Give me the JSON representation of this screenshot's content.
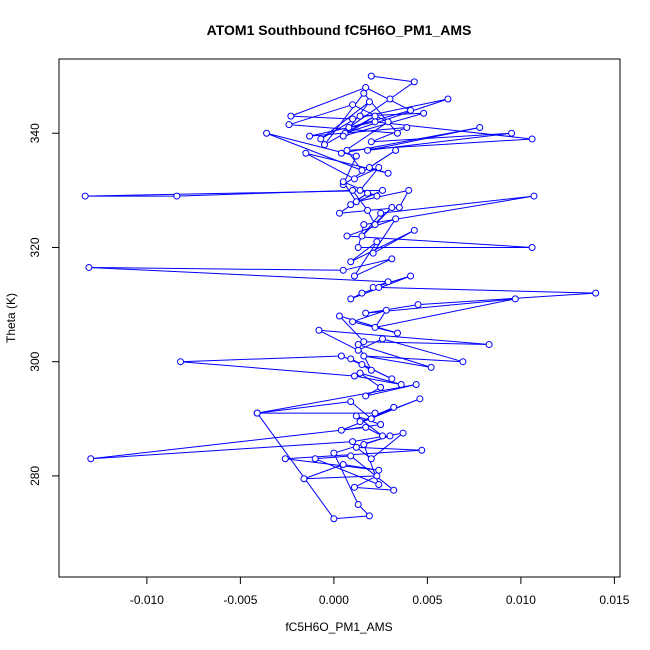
{
  "chart_data": {
    "type": "line",
    "title": "ATOM1 Southbound fC5H6O_PM1_AMS",
    "xlabel": "fC5H6O_PM1_AMS",
    "ylabel": "Theta (K)",
    "xlim": [
      -0.0147,
      0.0153
    ],
    "ylim": [
      262.3,
      353.0
    ],
    "x_ticks": [
      -0.01,
      -0.005,
      0.0,
      0.005,
      0.01,
      0.015
    ],
    "x_tick_labels": [
      "-0.010",
      "-0.005",
      "0.000",
      "0.005",
      "0.010",
      "0.015"
    ],
    "y_ticks": [
      280,
      300,
      320,
      340
    ],
    "y_tick_labels": [
      "280",
      "300",
      "320",
      "340"
    ],
    "series_color": "#0000ff",
    "marker": "open-circle",
    "grid": false,
    "legend": "none",
    "series": [
      {
        "x": [
          0.002,
          0.0043,
          0.003,
          0.0008,
          0.0041,
          0.0017,
          -0.0023,
          0.001,
          0.0061,
          0.0006,
          0.0019,
          -0.0007,
          0.0014,
          0.0048,
          0.0005,
          0.0022,
          -0.0005,
          0.0016,
          0.0034,
          -0.0024,
          0.001,
          0.0029,
          0.0004,
          0.0078,
          0.0018,
          0.0095,
          0.002,
          0.0039,
          -0.0013,
          0.0022,
          0.0106,
          0.0007,
          0.0015,
          -0.0036,
          0.0012,
          0.0005,
          0.0033,
          0.0019,
          0.0029,
          -0.0015,
          0.0011,
          0.0024,
          0.0014,
          0.0023,
          0.0005,
          0.0012,
          0.004,
          0.0035,
          0.0003,
          0.0018,
          0.0009,
          0.0026,
          -0.0133,
          -0.0084,
          0.001,
          0.0018,
          0.0022,
          0.0031,
          0.0015,
          0.0025,
          0.0107,
          0.0016,
          0.0013,
          0.0106,
          0.0007,
          0.0033,
          0.0021,
          0.0043,
          0.0009,
          0.0023,
          0.0011,
          0.0031,
          0.0005,
          -0.0131,
          0.0029,
          0.0021,
          0.0041,
          0.0009,
          0.0015,
          0.0024,
          0.014,
          0.0045,
          0.0017,
          0.0097,
          0.0022,
          0.0028,
          0.001,
          0.0034,
          0.0003,
          0.0016,
          0.0083,
          -0.0008,
          0.0013,
          0.0026,
          0.0069,
          0.0016,
          0.0052,
          0.0013,
          0.002,
          0.0009,
          0.0031,
          0.0015,
          0.0004,
          -0.0082,
          0.0011,
          0.0036,
          0.0014,
          0.0025,
          0.0017,
          0.0044,
          -0.0041,
          0.0009,
          0.002,
          0.0032,
          0.0014,
          0.0046,
          0.0004,
          0.0025,
          0.0012,
          0.0026,
          0.0017,
          -0.013,
          0.001,
          0.0037,
          0.002,
          0.0012,
          0.0047,
          -0.0026,
          0.0024,
          0.0005,
          -0.0016,
          0.0023,
          0.0011,
          0.0032,
          0.0009,
          -0.001,
          0.0024,
          0.0016,
          0.003,
          0.0,
          0.0013,
          0.0019,
          0.0,
          -0.0041,
          0.0022
        ],
        "y": [
          350.0,
          349.0,
          346.0,
          341.0,
          344.0,
          348.0,
          343.0,
          342.5,
          346.0,
          340.0,
          345.5,
          339.0,
          343.0,
          343.5,
          339.5,
          343.0,
          338.0,
          347.0,
          340.0,
          341.5,
          345.0,
          342.0,
          336.5,
          341.0,
          337.0,
          340.0,
          338.5,
          341.0,
          339.5,
          342.0,
          339.0,
          337.0,
          333.5,
          340.0,
          336.0,
          331.0,
          337.0,
          334.0,
          333.0,
          336.5,
          332.0,
          334.0,
          330.0,
          329.0,
          331.5,
          328.0,
          330.0,
          327.0,
          326.0,
          329.5,
          327.5,
          330.0,
          329.0,
          329.0,
          330.0,
          326.5,
          324.0,
          327.0,
          322.0,
          326.0,
          329.0,
          324.0,
          320.0,
          320.0,
          322.0,
          325.0,
          319.0,
          323.0,
          317.5,
          321.0,
          315.0,
          318.0,
          316.0,
          316.5,
          314.0,
          313.0,
          315.0,
          311.0,
          312.0,
          313.0,
          312.0,
          310.0,
          308.5,
          311.0,
          306.0,
          309.0,
          307.0,
          305.0,
          308.0,
          303.5,
          303.0,
          305.5,
          302.0,
          304.0,
          300.0,
          301.0,
          299.0,
          303.0,
          298.5,
          300.5,
          297.0,
          299.5,
          301.0,
          300.0,
          297.5,
          296.0,
          298.0,
          295.5,
          294.0,
          296.0,
          291.0,
          293.0,
          290.0,
          292.0,
          289.5,
          293.5,
          288.0,
          289.0,
          290.5,
          287.0,
          288.5,
          283.0,
          286.0,
          287.5,
          283.0,
          285.0,
          284.5,
          283.0,
          281.0,
          282.0,
          279.5,
          280.0,
          278.0,
          277.5,
          283.5,
          283.0,
          278.5,
          285.5,
          287.0,
          284.0,
          275.0,
          273.0,
          272.5,
          291.0,
          291.0
        ]
      }
    ]
  }
}
